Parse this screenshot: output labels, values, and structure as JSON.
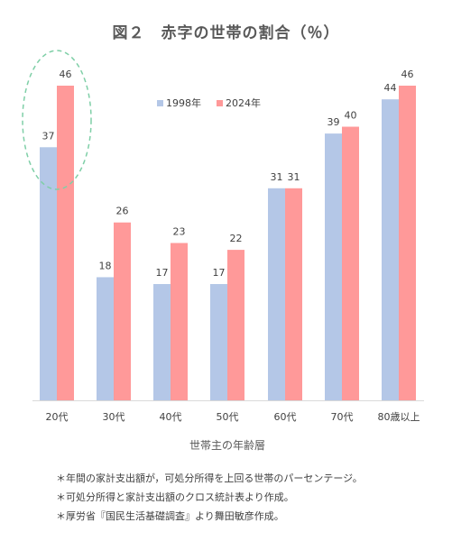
{
  "chart_data": {
    "type": "bar",
    "title": "図２　赤字の世帯の割合（％）",
    "xlabel": "世帯主の年齢層",
    "ylabel": "",
    "ylim": [
      0,
      50
    ],
    "categories": [
      "20代",
      "30代",
      "40代",
      "50代",
      "60代",
      "70代",
      "80歳以上"
    ],
    "series": [
      {
        "name": "1998年",
        "values": [
          37,
          18,
          17,
          17,
          31,
          39,
          44
        ],
        "color": "#b4c7e7"
      },
      {
        "name": "2024年",
        "values": [
          46,
          26,
          23,
          22,
          31,
          40,
          46
        ],
        "color": "#ff9999"
      }
    ],
    "legend_position": "top-center",
    "grid": false,
    "highlight": {
      "category": "20代",
      "style": "dashed-ellipse",
      "color": "#7fcfa7"
    }
  },
  "notes": [
    "＊年間の家計支出額が，可処分所得を上回る世帯のパーセンテージ。",
    "＊可処分所得と家計支出額のクロス統計表より作成。",
    "＊厚労省『国民生活基礎調査』より舞田敏彦作成。"
  ]
}
